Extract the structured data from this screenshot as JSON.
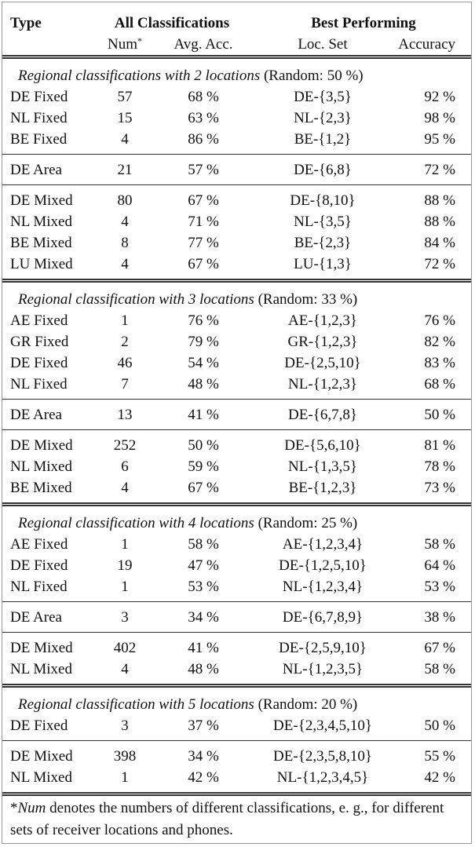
{
  "header": {
    "type": "Type",
    "all": "All Classifications",
    "best": "Best Performing",
    "num": "Num",
    "num_mark": "*",
    "avg": "Avg. Acc.",
    "loc": "Loc. Set",
    "acc": "Accuracy"
  },
  "sections": [
    {
      "caption": "Regional classifications with 2 locations",
      "random": "(Random: 50 %)",
      "groups": [
        [
          [
            "DE Fixed",
            "57",
            "68 %",
            "DE-{3,5}",
            "92 %"
          ],
          [
            "NL Fixed",
            "15",
            "63 %",
            "NL-{2,3}",
            "98 %"
          ],
          [
            "BE Fixed",
            "4",
            "86 %",
            "BE-{1,2}",
            "95 %"
          ]
        ],
        [
          [
            "DE Area",
            "21",
            "57 %",
            "DE-{6,8}",
            "72 %"
          ]
        ],
        [
          [
            "DE Mixed",
            "80",
            "67 %",
            "DE-{8,10}",
            "88 %"
          ],
          [
            "NL Mixed",
            "4",
            "71 %",
            "NL-{3,5}",
            "88 %"
          ],
          [
            "BE Mixed",
            "8",
            "77 %",
            "BE-{2,3}",
            "84 %"
          ],
          [
            "LU Mixed",
            "4",
            "67 %",
            "LU-{1,3}",
            "72 %"
          ]
        ]
      ]
    },
    {
      "caption": "Regional classification with 3 locations",
      "random": "(Random: 33 %)",
      "groups": [
        [
          [
            "AE Fixed",
            "1",
            "76 %",
            "AE-{1,2,3}",
            "76 %"
          ],
          [
            "GR Fixed",
            "2",
            "79 %",
            "GR-{1,2,3}",
            "82 %"
          ],
          [
            "DE Fixed",
            "46",
            "54 %",
            "DE-{2,5,10}",
            "83 %"
          ],
          [
            "NL Fixed",
            "7",
            "48 %",
            "NL-{1,2,3}",
            "68 %"
          ]
        ],
        [
          [
            "DE Area",
            "13",
            "41 %",
            "DE-{6,7,8}",
            "50 %"
          ]
        ],
        [
          [
            "DE Mixed",
            "252",
            "50 %",
            "DE-{5,6,10}",
            "81 %"
          ],
          [
            "NL Mixed",
            "6",
            "59 %",
            "NL-{1,3,5}",
            "78 %"
          ],
          [
            "BE Mixed",
            "4",
            "67 %",
            "BE-{1,2,3}",
            "73 %"
          ]
        ]
      ]
    },
    {
      "caption": "Regional classification with 4 locations",
      "random": "(Random: 25 %)",
      "groups": [
        [
          [
            "AE Fixed",
            "1",
            "58 %",
            "AE-{1,2,3,4}",
            "58 %"
          ],
          [
            "DE Fixed",
            "19",
            "47 %",
            "DE-{1,2,5,10}",
            "64 %"
          ],
          [
            "NL Fixed",
            "1",
            "53 %",
            "NL-{1,2,3,4}",
            "53 %"
          ]
        ],
        [
          [
            "DE Area",
            "3",
            "34 %",
            "DE-{6,7,8,9}",
            "38 %"
          ]
        ],
        [
          [
            "DE Mixed",
            "402",
            "41 %",
            "DE-{2,5,9,10}",
            "67 %"
          ],
          [
            "NL Mixed",
            "4",
            "48 %",
            "NL-{1,2,3,5}",
            "58 %"
          ]
        ]
      ]
    },
    {
      "caption": "Regional classification with 5 locations",
      "random": "(Random: 20 %)",
      "groups": [
        [
          [
            "DE Fixed",
            "3",
            "37 %",
            "DE-{2,3,4,5,10}",
            "50 %"
          ]
        ],
        [
          [
            "DE Mixed",
            "398",
            "34 %",
            "DE-{2,3,5,8,10}",
            "55 %"
          ],
          [
            "NL Mixed",
            "1",
            "42 %",
            "NL-{1,2,3,4,5}",
            "42 %"
          ]
        ]
      ]
    }
  ],
  "footnote": {
    "mark": "*",
    "term": "Num",
    "text": "denotes the numbers of different classifications, e. g., for different sets of receiver locations and phones."
  }
}
